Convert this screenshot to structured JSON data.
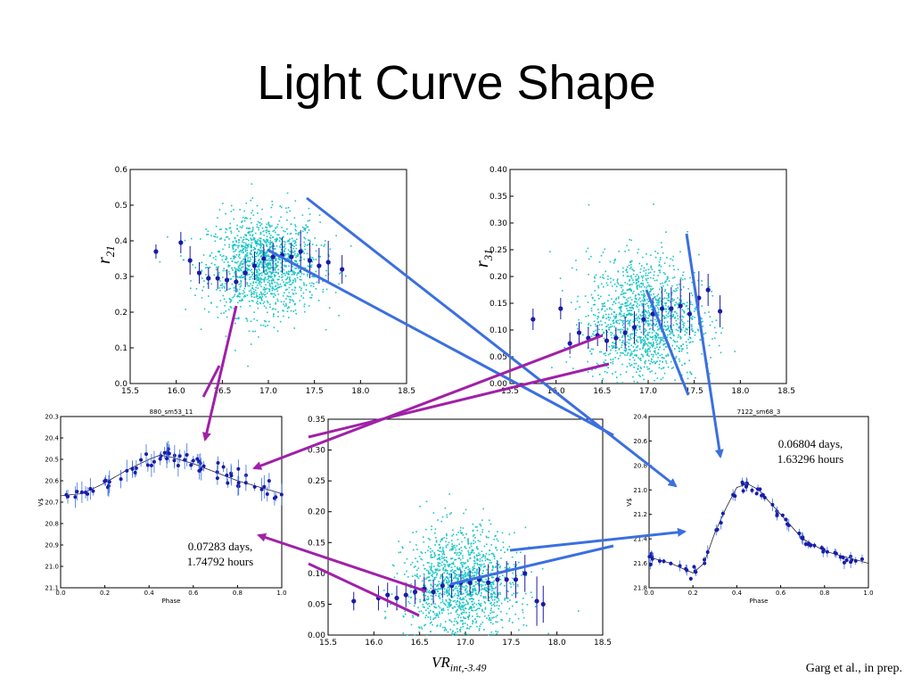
{
  "slide": {
    "title": "Light Curve Shape",
    "citation": "Garg et al., in prep."
  },
  "colors": {
    "scatter": "#19c4c4",
    "binned": "#1a1aa8",
    "arrow_blue": "#3b6fe0",
    "arrow_purple": "#a020a8"
  },
  "chart_data": [
    {
      "id": "r21-vs-mag",
      "type": "scatter",
      "ylabel_main": "r",
      "ylabel_sub": "21",
      "xlim": [
        15.5,
        18.5
      ],
      "ylim": [
        0.0,
        0.6
      ],
      "xticks": [
        "15.5",
        "16.0",
        "16.5",
        "17.0",
        "17.5",
        "18.0",
        "18.5"
      ],
      "yticks": [
        "0.0",
        "0.1",
        "0.2",
        "0.3",
        "0.4",
        "0.5",
        "0.6"
      ],
      "scatter_cloud": {
        "x_center": 16.95,
        "x_spread": 0.3,
        "y_center": 0.33,
        "y_spread": 0.07,
        "n": 1400
      },
      "binned": {
        "x": [
          15.78,
          16.05,
          16.15,
          16.25,
          16.35,
          16.45,
          16.55,
          16.65,
          16.75,
          16.85,
          16.95,
          17.05,
          17.15,
          17.25,
          17.35,
          17.45,
          17.55,
          17.65,
          17.8
        ],
        "y": [
          0.37,
          0.395,
          0.345,
          0.31,
          0.295,
          0.295,
          0.29,
          0.285,
          0.31,
          0.33,
          0.35,
          0.355,
          0.36,
          0.355,
          0.37,
          0.345,
          0.33,
          0.34,
          0.32
        ],
        "err": [
          0.02,
          0.03,
          0.04,
          0.03,
          0.03,
          0.03,
          0.03,
          0.03,
          0.04,
          0.04,
          0.04,
          0.04,
          0.05,
          0.04,
          0.06,
          0.05,
          0.05,
          0.06,
          0.04
        ]
      }
    },
    {
      "id": "r31-vs-mag",
      "type": "scatter",
      "ylabel_main": "r",
      "ylabel_sub": "31",
      "xlim": [
        15.5,
        18.5
      ],
      "ylim": [
        0.0,
        0.4
      ],
      "xticks": [
        "15.5",
        "16.0",
        "16.5",
        "17.0",
        "17.5",
        "18.0",
        "18.5"
      ],
      "yticks": [
        "0.00",
        "0.05",
        "0.10",
        "0.15",
        "0.20",
        "0.25",
        "0.30",
        "0.35",
        "0.40"
      ],
      "scatter_cloud": {
        "x_center": 16.95,
        "x_spread": 0.3,
        "y_center": 0.12,
        "y_spread": 0.06,
        "n": 1400
      },
      "binned": {
        "x": [
          15.75,
          16.05,
          16.15,
          16.25,
          16.35,
          16.45,
          16.55,
          16.65,
          16.75,
          16.85,
          16.95,
          17.05,
          17.15,
          17.25,
          17.35,
          17.45,
          17.55,
          17.65,
          17.78
        ],
        "y": [
          0.12,
          0.14,
          0.075,
          0.095,
          0.085,
          0.09,
          0.08,
          0.085,
          0.095,
          0.105,
          0.12,
          0.13,
          0.14,
          0.14,
          0.145,
          0.13,
          0.16,
          0.175,
          0.135
        ],
        "err": [
          0.02,
          0.02,
          0.02,
          0.02,
          0.02,
          0.02,
          0.02,
          0.02,
          0.03,
          0.03,
          0.03,
          0.03,
          0.04,
          0.04,
          0.05,
          0.04,
          0.05,
          0.03,
          0.03
        ]
      }
    },
    {
      "id": "phi-vs-mag",
      "type": "scatter",
      "xlabel_main": "VR",
      "xlabel_sub": "int,-3.49",
      "xlim": [
        15.5,
        18.5
      ],
      "ylim": [
        0.0,
        0.35
      ],
      "xticks": [
        "15.5",
        "16.0",
        "16.5",
        "17.0",
        "17.5",
        "18.0",
        "18.5"
      ],
      "yticks": [
        "0.00",
        "0.05",
        "0.10",
        "0.15",
        "0.20",
        "0.25",
        "0.30",
        "0.35"
      ],
      "scatter_cloud": {
        "x_center": 16.95,
        "x_spread": 0.3,
        "y_center": 0.08,
        "y_spread": 0.045,
        "n": 1400
      },
      "binned": {
        "x": [
          15.78,
          16.05,
          16.15,
          16.25,
          16.35,
          16.45,
          16.55,
          16.65,
          16.75,
          16.85,
          16.95,
          17.05,
          17.15,
          17.25,
          17.35,
          17.45,
          17.55,
          17.65,
          17.78,
          17.85
        ],
        "y": [
          0.055,
          0.06,
          0.065,
          0.06,
          0.065,
          0.07,
          0.075,
          0.07,
          0.08,
          0.08,
          0.085,
          0.085,
          0.09,
          0.085,
          0.09,
          0.09,
          0.09,
          0.1,
          0.055,
          0.05
        ],
        "err": [
          0.015,
          0.02,
          0.02,
          0.02,
          0.02,
          0.02,
          0.02,
          0.02,
          0.02,
          0.02,
          0.02,
          0.02,
          0.02,
          0.03,
          0.03,
          0.03,
          0.03,
          0.03,
          0.04,
          0.03
        ]
      }
    },
    {
      "id": "lc-880",
      "type": "line",
      "title": "880_sm53_11",
      "xlabel": "Phase",
      "ylabel": "V$",
      "xlim": [
        0.0,
        1.0
      ],
      "ylim": [
        21.1,
        20.3
      ],
      "xticks": [
        "0.0",
        "0.2",
        "0.4",
        "0.6",
        "0.8",
        "1.0"
      ],
      "yticks": [
        "20.3",
        "20.4",
        "20.5",
        "20.6",
        "20.7",
        "20.8",
        "20.9",
        "21.0",
        "21.1"
      ],
      "fit": {
        "x": [
          0.0,
          0.1,
          0.2,
          0.3,
          0.4,
          0.45,
          0.5,
          0.6,
          0.7,
          0.8,
          0.9,
          1.0
        ],
        "y": [
          20.67,
          20.66,
          20.61,
          20.55,
          20.5,
          20.48,
          20.49,
          20.52,
          20.56,
          20.6,
          20.63,
          20.66
        ]
      },
      "note": [
        "0.07283 days,",
        "1.74792 hours"
      ]
    },
    {
      "id": "lc-7122",
      "type": "line",
      "title": "7122_sm68_3",
      "xlabel": "Phase",
      "ylabel": "V$",
      "xlim": [
        0.0,
        1.0
      ],
      "ylim": [
        21.8,
        20.4
      ],
      "xticks": [
        "0.0",
        "0.2",
        "0.4",
        "0.6",
        "0.8",
        "1.0"
      ],
      "yticks": [
        "20.4",
        "20.6",
        "20.8",
        "21.0",
        "21.2",
        "21.4",
        "21.6",
        "21.8"
      ],
      "fit": {
        "x": [
          0.0,
          0.1,
          0.2,
          0.25,
          0.3,
          0.35,
          0.4,
          0.45,
          0.5,
          0.6,
          0.7,
          0.8,
          0.9,
          1.0
        ],
        "y": [
          21.55,
          21.6,
          21.68,
          21.6,
          21.35,
          21.15,
          20.98,
          20.95,
          21.0,
          21.2,
          21.4,
          21.5,
          21.55,
          21.6
        ]
      },
      "note": [
        "0.06804 days,",
        "1.63296 hours"
      ]
    }
  ]
}
